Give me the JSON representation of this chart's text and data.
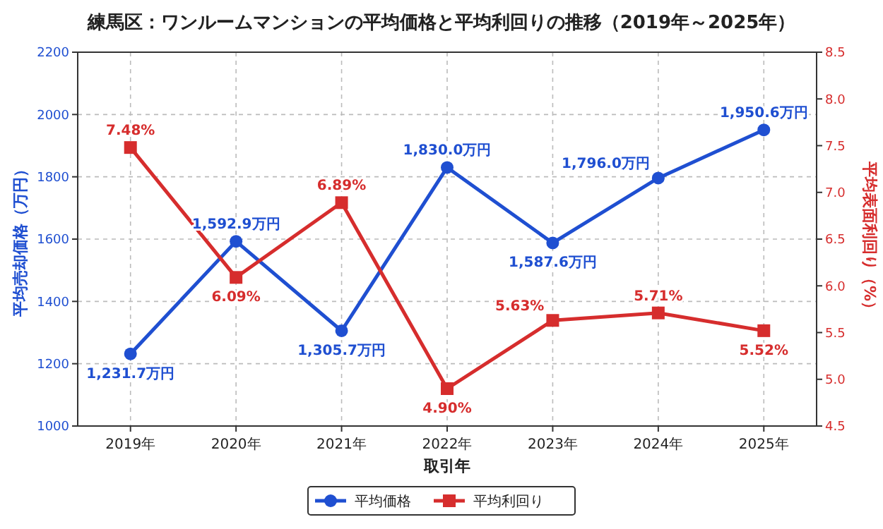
{
  "chart_data": {
    "type": "line",
    "title": "練馬区：ワンルームマンションの平均価格と平均利回りの推移（2019年～2025年）",
    "xlabel": "取引年",
    "ylabel": "平均売却価格（万円）",
    "y2label": "平均表面利回り（%）",
    "categories": [
      "2019年",
      "2020年",
      "2021年",
      "2022年",
      "2023年",
      "2024年",
      "2025年"
    ],
    "series": [
      {
        "name": "平均価格",
        "color": "#1f4fd1",
        "marker": "circle",
        "values": [
          1231.7,
          1592.9,
          1305.7,
          1830.0,
          1587.6,
          1796.0,
          1950.6
        ],
        "value_labels": [
          "1,231.7万円",
          "1,592.9万円",
          "1,305.7万円",
          "1,830.0万円",
          "1,587.6万円",
          "1,796.0万円",
          "1,950.6万円"
        ]
      },
      {
        "name": "平均利回り",
        "color": "#d62d2d",
        "marker": "square",
        "axis": "y2",
        "values": [
          7.48,
          6.09,
          6.89,
          4.9,
          5.63,
          5.71,
          5.52
        ],
        "value_labels": [
          "7.48%",
          "6.09%",
          "6.89%",
          "4.90%",
          "5.63%",
          "5.71%",
          "5.52%"
        ]
      }
    ],
    "ylim": [
      1000,
      2200
    ],
    "yticks": [
      1000,
      1200,
      1400,
      1600,
      1800,
      2000,
      2200
    ],
    "y2lim": [
      4.5,
      8.5
    ],
    "y2ticks": [
      4.5,
      {
        "value": 5,
        "label": "5.0"
      },
      5.5,
      {
        "value": 6,
        "label": "6.0"
      },
      6.5,
      {
        "value": 7,
        "label": "7.0"
      },
      7.5,
      {
        "value": 8,
        "label": "8.0"
      },
      8.5
    ],
    "grid": true,
    "legend": "bottom",
    "line_style": "solid"
  }
}
